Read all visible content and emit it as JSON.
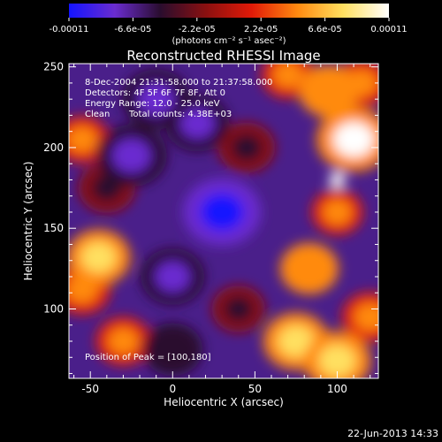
{
  "chart_data": {
    "type": "heatmap",
    "title": "Reconstructed RHESSI Image",
    "xlabel": "Heliocentric X (arcsec)",
    "ylabel": "Heliocentric Y (arcsec)",
    "xlim": [
      -63,
      125
    ],
    "ylim": [
      57,
      252
    ],
    "x_ticks": [
      -50,
      0,
      50,
      100
    ],
    "y_ticks": [
      100,
      150,
      200,
      250
    ],
    "colorbar": {
      "ticks": [
        "-0.00011",
        "-6.6e-05",
        "-2.2e-05",
        "2.2e-05",
        "6.6e-05",
        "0.00011"
      ],
      "unit": "(photons cm⁻² s⁻¹ asec⁻²)",
      "range": [
        -0.00011,
        0.00011
      ],
      "colors": [
        "#1414ff",
        "#6a2cd0",
        "#2a0d2e",
        "#8a1010",
        "#e21a08",
        "#ff8a10",
        "#ffe060",
        "#ffffff"
      ]
    },
    "annotations": {
      "time": "8-Dec-2004 21:31:58.000 to 21:37:58.000",
      "detectors": "Detectors: 4F 5F 6F 7F 8F, Att 0",
      "energy": "Energy Range: 12.0 - 25.0 keV",
      "method": "Clean",
      "counts": "Total counts: 4.38E+03",
      "peak": "Position of Peak = [100,180]"
    },
    "peak": [
      100,
      180
    ],
    "emission_regions": [
      {
        "x": 110,
        "y": 205,
        "value": 0.0001
      },
      {
        "x": 95,
        "y": 235,
        "value": 6e-05
      },
      {
        "x": 115,
        "y": 240,
        "value": 4.5e-05
      },
      {
        "x": 83,
        "y": 125,
        "value": 5.5e-05
      },
      {
        "x": 100,
        "y": 160,
        "value": 3.5e-05
      },
      {
        "x": 75,
        "y": 80,
        "value": 7.5e-05
      },
      {
        "x": 100,
        "y": 68,
        "value": 8e-05
      },
      {
        "x": 120,
        "y": 95,
        "value": 5e-05
      },
      {
        "x": -45,
        "y": 132,
        "value": 7e-05
      },
      {
        "x": -55,
        "y": 112,
        "value": 5e-05
      },
      {
        "x": -30,
        "y": 80,
        "value": 4.5e-05
      },
      {
        "x": -55,
        "y": 205,
        "value": 4e-05
      },
      {
        "x": 70,
        "y": 245,
        "value": 4e-05
      },
      {
        "x": 30,
        "y": 160,
        "value": -0.00011
      },
      {
        "x": -25,
        "y": 195,
        "value": -9e-05
      },
      {
        "x": -10,
        "y": 230,
        "value": -8e-05
      },
      {
        "x": 15,
        "y": 215,
        "value": -7e-05
      },
      {
        "x": 0,
        "y": 120,
        "value": -7e-05
      },
      {
        "x": -40,
        "y": 175,
        "value": -5e-05
      },
      {
        "x": 0,
        "y": 75,
        "value": -6e-05
      },
      {
        "x": 40,
        "y": 100,
        "value": -4e-05
      },
      {
        "x": 45,
        "y": 200,
        "value": -5e-05
      }
    ]
  },
  "footer": {
    "timestamp": "22-Jun-2013 14:33"
  }
}
